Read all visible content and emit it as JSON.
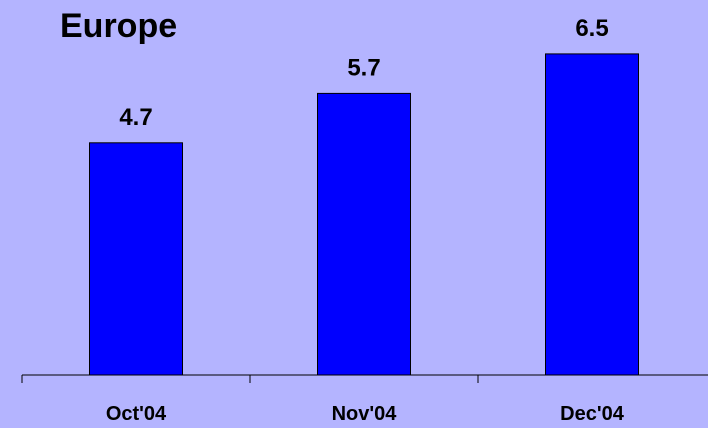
{
  "colors": {
    "background": "#b4b4ff",
    "bar": "#0000ff",
    "text": "#000000"
  },
  "chart_data": {
    "type": "bar",
    "title": "Europe",
    "categories": [
      "Oct'04",
      "Nov'04",
      "Dec'04"
    ],
    "values": [
      4.7,
      5.7,
      6.5
    ],
    "data_labels": [
      "4.7",
      "5.7",
      "6.5"
    ],
    "xlabel": "",
    "ylabel": "",
    "ylim": [
      0,
      8
    ],
    "grid": false,
    "legend": "none"
  }
}
